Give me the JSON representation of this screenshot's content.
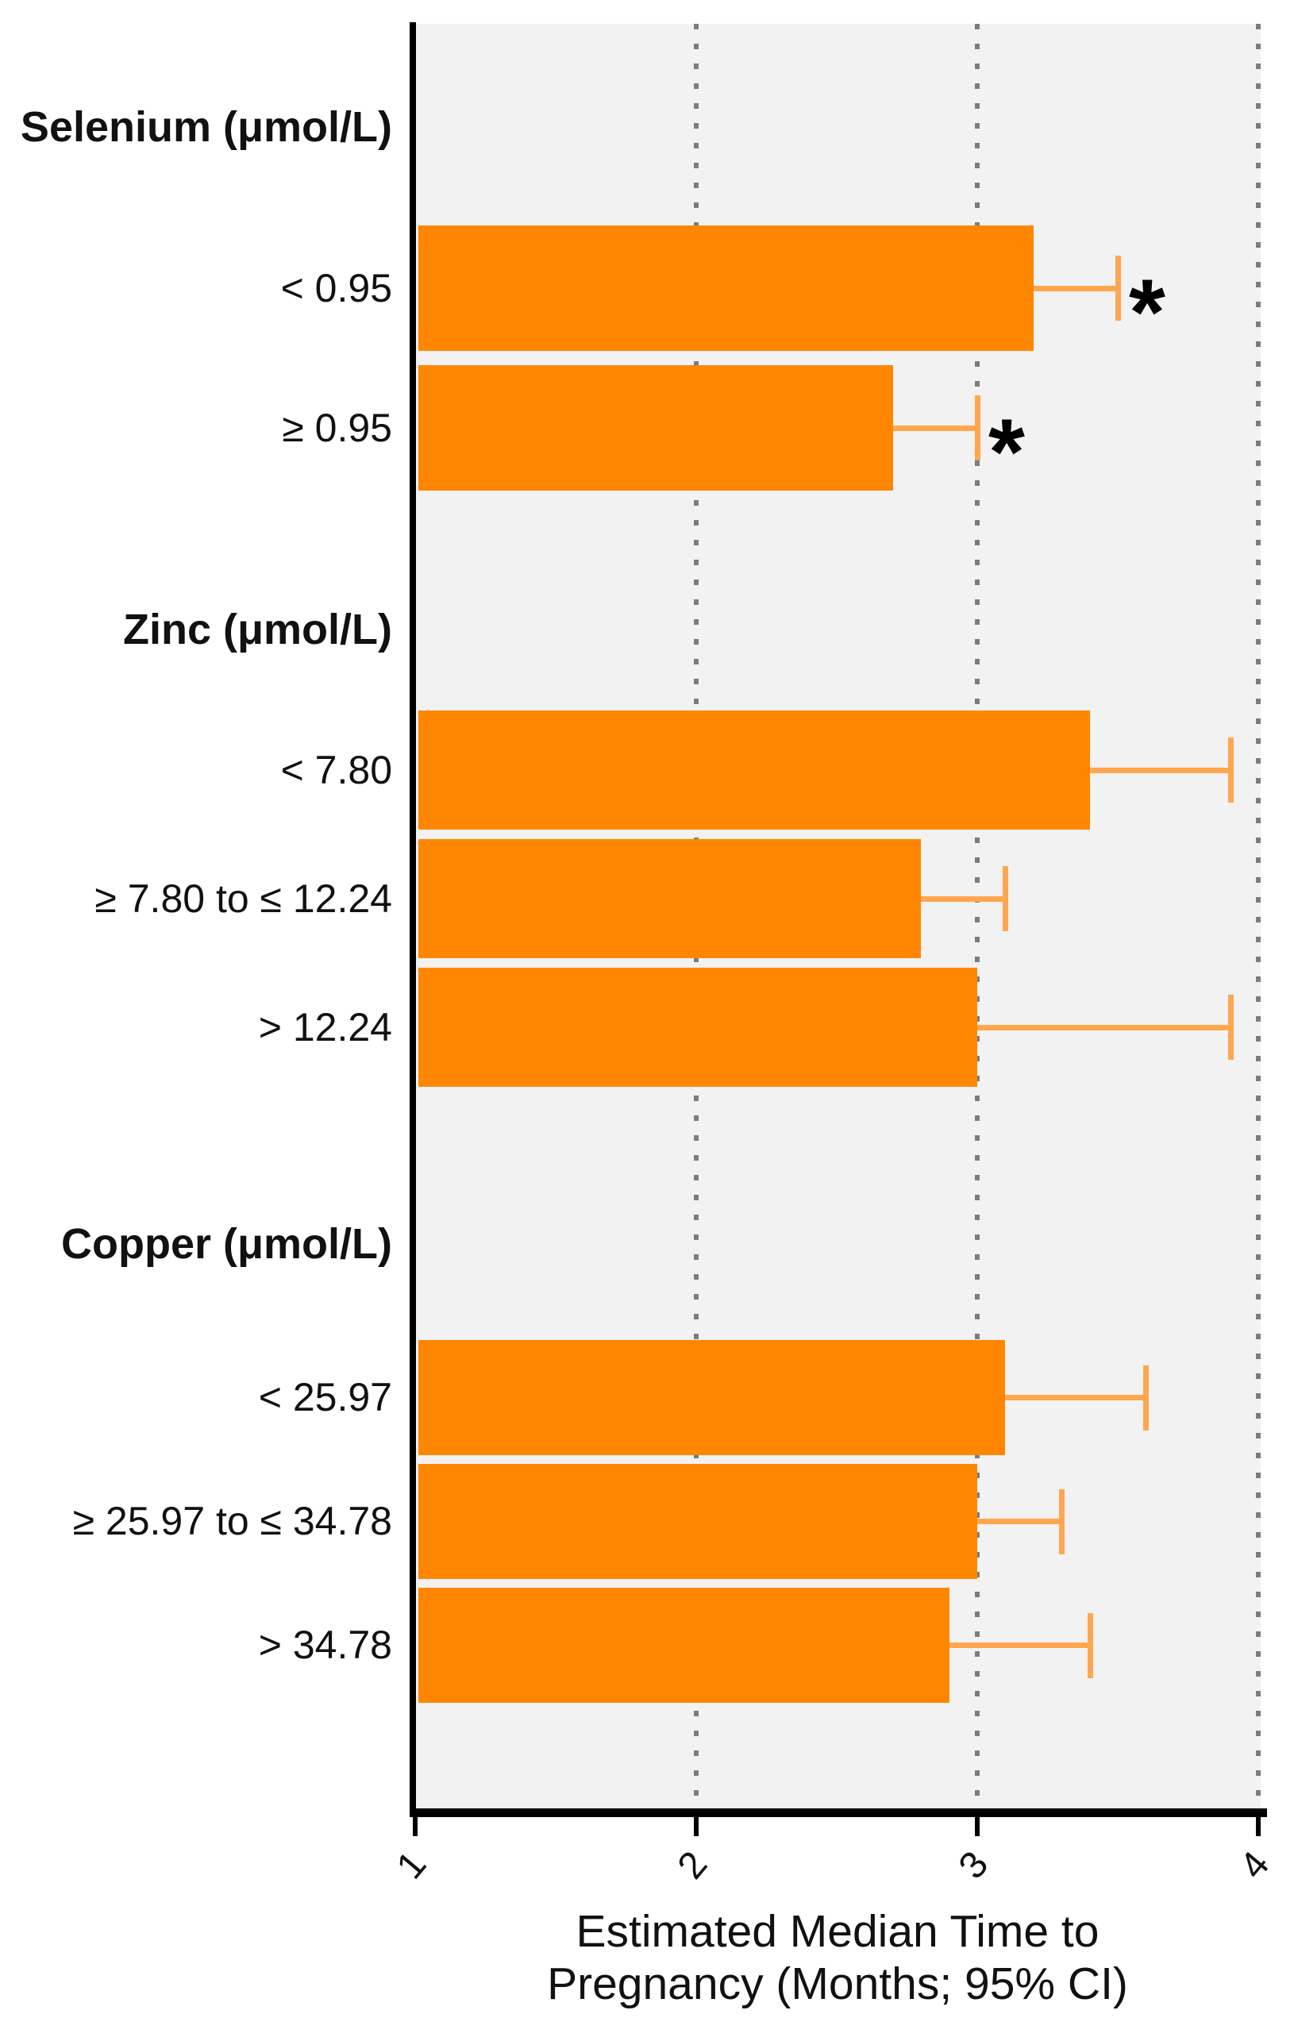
{
  "figure": {
    "plot_bg": "#f2f2f2",
    "bar_color": "#ff8600",
    "error_color": "#ffa64f",
    "grid_color": "#7c7c7c",
    "axis_color": "#000000",
    "significance_marker": "*"
  },
  "chart_data": {
    "type": "bar",
    "orientation": "horizontal",
    "xlabel": "Estimated Median Time to Pregnancy (Months; 95% CI)",
    "xlabel_lines": [
      "Estimated Median Time to",
      "Pregnancy (Months; 95% CI)"
    ],
    "xlim": [
      1,
      4
    ],
    "xticks": [
      "1",
      "2",
      "3",
      "4"
    ],
    "grid": "vertical dotted at 2, 3, 4",
    "legend": "none",
    "groups": [
      {
        "header": "Selenium (μmol/L)",
        "items": [
          {
            "label": "< 0.95",
            "median": 3.2,
            "ci_upper": 3.5,
            "significant": true
          },
          {
            "label": "≥ 0.95",
            "median": 2.7,
            "ci_upper": 3.0,
            "significant": true
          }
        ]
      },
      {
        "header": "Zinc (μmol/L)",
        "items": [
          {
            "label": "< 7.80",
            "median": 3.4,
            "ci_upper": 3.9,
            "significant": false
          },
          {
            "label": "≥ 7.80 to ≤ 12.24",
            "median": 2.8,
            "ci_upper": 3.1,
            "significant": false
          },
          {
            "label": "> 12.24",
            "median": 3.0,
            "ci_upper": 3.9,
            "significant": false
          }
        ]
      },
      {
        "header": "Copper (μmol/L)",
        "items": [
          {
            "label": "< 25.97",
            "median": 3.1,
            "ci_upper": 3.6,
            "significant": false
          },
          {
            "label": "≥ 25.97 to ≤ 34.78",
            "median": 3.0,
            "ci_upper": 3.3,
            "significant": false
          },
          {
            "label": "> 34.78",
            "median": 2.9,
            "ci_upper": 3.4,
            "significant": false
          }
        ]
      }
    ]
  }
}
